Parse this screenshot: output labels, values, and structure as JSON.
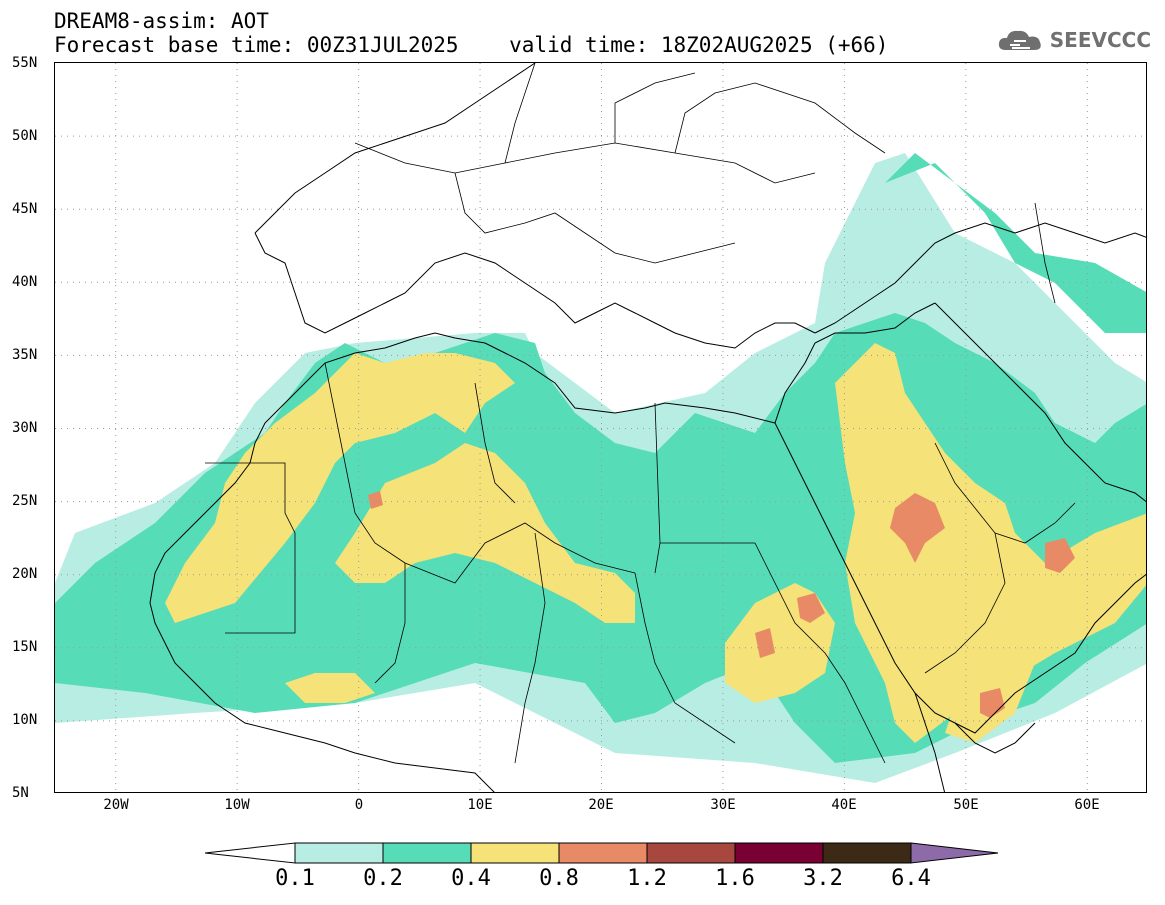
{
  "title": {
    "line1": "DREAM8-assim: AOT",
    "line2": "Forecast base time: 00Z31JUL2025    valid time: 18Z02AUG2025 (+66)"
  },
  "logo": {
    "text": "SEEVCCC",
    "icon": "cloud-logo-icon"
  },
  "map": {
    "lon_range": [
      -25,
      65
    ],
    "lat_range": [
      5,
      55
    ],
    "grid": true,
    "lat_labels": [
      "55N",
      "50N",
      "45N",
      "40N",
      "35N",
      "30N",
      "25N",
      "20N",
      "15N",
      "10N",
      "5N"
    ],
    "lon_labels": [
      "20W",
      "10W",
      "0",
      "10E",
      "20E",
      "30E",
      "40E",
      "50E",
      "60E"
    ]
  },
  "colorbar": {
    "labels": [
      "0.1",
      "0.2",
      "0.4",
      "0.8",
      "1.2",
      "1.6",
      "3.2",
      "6.4"
    ],
    "colors": [
      "#ffffff",
      "#b8ede3",
      "#57dcb8",
      "#f5e279",
      "#e98a67",
      "#a8473e",
      "#780032",
      "#3d2a16",
      "#8d6aa8"
    ]
  }
}
